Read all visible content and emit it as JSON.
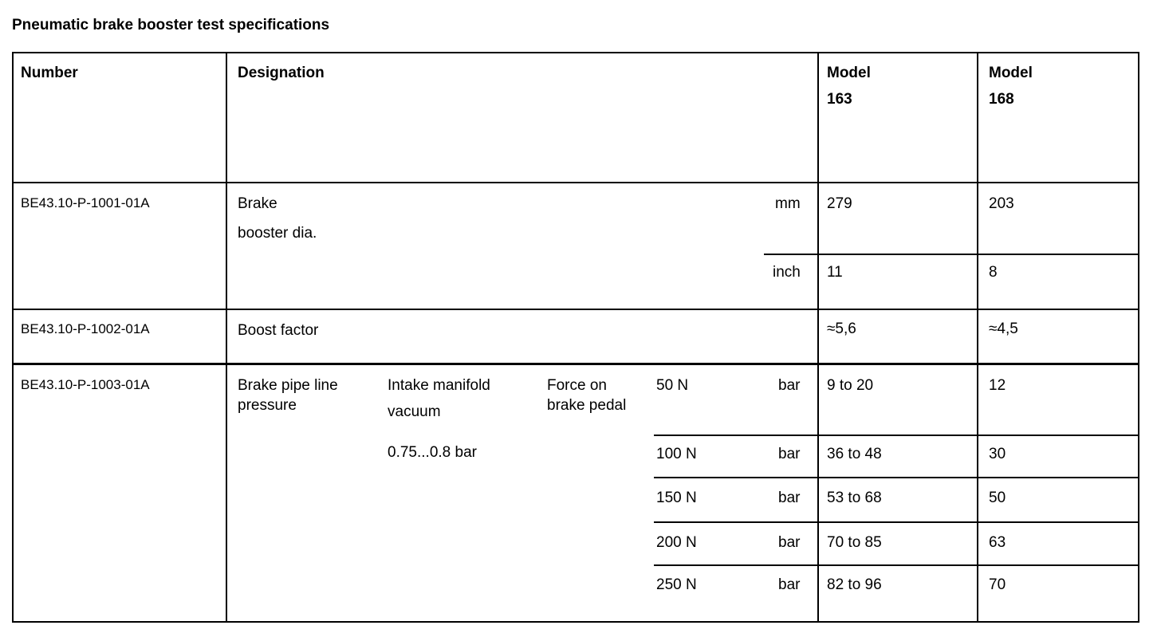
{
  "title": "Pneumatic brake booster test specifications",
  "headers": {
    "number": "Number",
    "designation": "Designation",
    "model_a": "Model",
    "model_a_num": "163",
    "model_b": "Model",
    "model_b_num": "168"
  },
  "rows": [
    {
      "number": "BE43.10-P-1001-01A",
      "designation_l1": "Brake",
      "designation_l2": "booster dia.",
      "sub": [
        {
          "unit": "mm",
          "m163": "279",
          "m168": "203"
        },
        {
          "unit": "inch",
          "m163": "11",
          "m168": "8"
        }
      ]
    },
    {
      "number": "BE43.10-P-1002-01A",
      "designation": "Boost factor",
      "m163": "≈5,6",
      "m168": "≈4,5"
    },
    {
      "number": "BE43.10-P-1003-01A",
      "designation_l1": "Brake pipe line",
      "designation_l2": "pressure",
      "condition_l1": "Intake manifold",
      "condition_l2": "vacuum",
      "condition_value": "0.75...0.8 bar",
      "force_l1": "Force on",
      "force_l2": "brake pedal",
      "sub": [
        {
          "force": "50 N",
          "unit": "bar",
          "m163": "9 to 20",
          "m168": "12"
        },
        {
          "force": "100 N",
          "unit": "bar",
          "m163": "36 to 48",
          "m168": "30"
        },
        {
          "force": "150 N",
          "unit": "bar",
          "m163": "53 to 68",
          "m168": "50"
        },
        {
          "force": "200 N",
          "unit": "bar",
          "m163": "70 to 85",
          "m168": "63"
        },
        {
          "force": "250 N",
          "unit": "bar",
          "m163": "82 to 96",
          "m168": "70"
        }
      ]
    }
  ]
}
